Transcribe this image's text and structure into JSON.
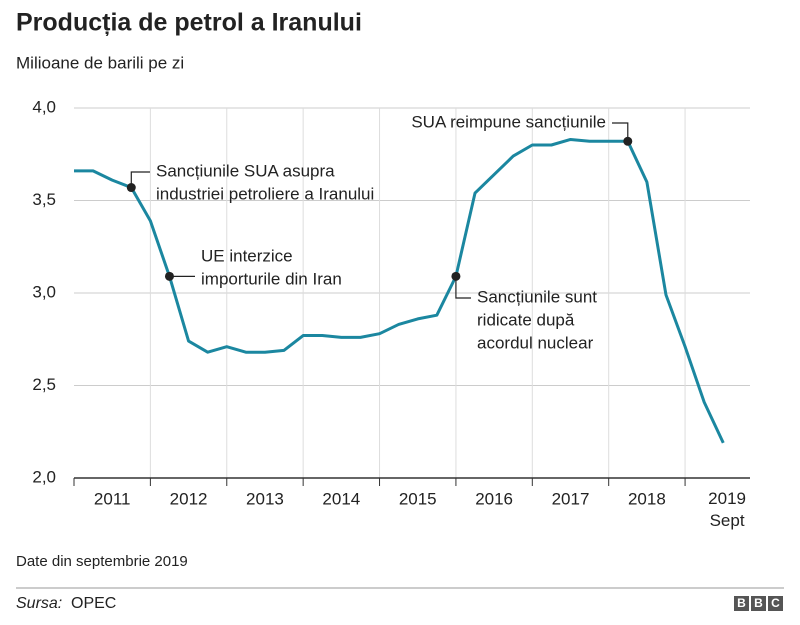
{
  "chart_data": {
    "type": "line",
    "title": "Producția de petrol a Iranului",
    "subtitle": "Milioane de barili pe zi",
    "note": "Date din septembrie 2019",
    "source": {
      "label": "Sursa:",
      "text": "OPEC"
    },
    "logo": "BBC",
    "x": [
      2011,
      2011.25,
      2011.5,
      2011.75,
      2012,
      2012.25,
      2012.5,
      2012.75,
      2013,
      2013.25,
      2013.5,
      2013.75,
      2014,
      2014.25,
      2014.5,
      2014.75,
      2015,
      2015.25,
      2015.5,
      2015.75,
      2016,
      2016.25,
      2016.5,
      2016.75,
      2017,
      2017.25,
      2017.5,
      2017.75,
      2018,
      2018.25,
      2018.5,
      2018.75,
      2019,
      2019.25,
      2019.5
    ],
    "series": [
      {
        "color": "#1b87a0",
        "values": [
          3.66,
          3.66,
          3.61,
          3.57,
          3.39,
          3.09,
          2.74,
          2.68,
          2.71,
          2.68,
          2.68,
          2.69,
          2.77,
          2.77,
          2.76,
          2.76,
          2.78,
          2.83,
          2.86,
          2.88,
          3.09,
          3.54,
          3.64,
          3.74,
          3.8,
          3.8,
          3.83,
          3.82,
          3.82,
          3.82,
          3.6,
          2.99,
          2.71,
          2.41,
          2.19
        ]
      }
    ],
    "xlim": [
      2011,
      2019.85
    ],
    "xgrid": [
      2011,
      2012,
      2013,
      2014,
      2015,
      2016,
      2017,
      2018,
      2019
    ],
    "xticks": [
      {
        "value": 2011.5,
        "label": "2011"
      },
      {
        "value": 2012.5,
        "label": "2012"
      },
      {
        "value": 2013.5,
        "label": "2013"
      },
      {
        "value": 2014.5,
        "label": "2014"
      },
      {
        "value": 2015.5,
        "label": "2015"
      },
      {
        "value": 2016.5,
        "label": "2016"
      },
      {
        "value": 2017.5,
        "label": "2017"
      },
      {
        "value": 2018.5,
        "label": "2018"
      },
      {
        "value": 2019.55,
        "label": "2019\nSept"
      }
    ],
    "ylim": [
      2.0,
      4.0
    ],
    "yticks": [
      {
        "value": 2.0,
        "label": "2,0"
      },
      {
        "value": 2.5,
        "label": "2,5"
      },
      {
        "value": 3.0,
        "label": "3,0"
      },
      {
        "value": 3.5,
        "label": "3,5"
      },
      {
        "value": 4.0,
        "label": "4,0"
      }
    ],
    "grid": true,
    "annotations": [
      {
        "x": 2011.75,
        "lines": [
          "Sancțiunile SUA asupra",
          "industriei petroliere a Iranului"
        ]
      },
      {
        "x": 2012.25,
        "lines": [
          "UE interzice",
          "importurile din Iran"
        ]
      },
      {
        "x": 2016,
        "lines": [
          "Sancțiunile sunt",
          "ridicate după",
          "acordul nuclear"
        ]
      },
      {
        "x": 2018.25,
        "lines": [
          "SUA reimpune sancțiunile"
        ]
      }
    ]
  }
}
